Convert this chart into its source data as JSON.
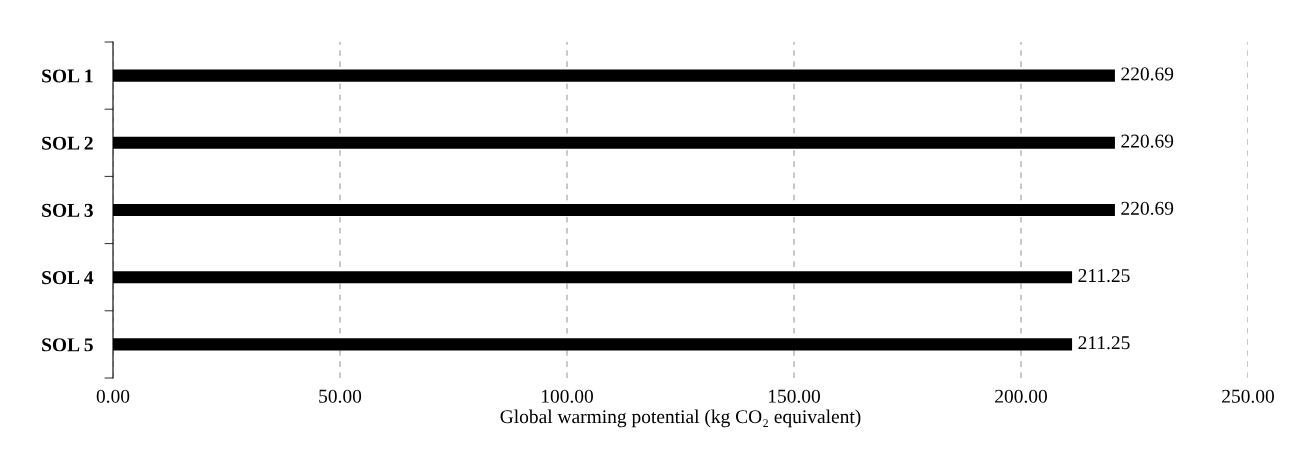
{
  "chart_data": {
    "type": "bar",
    "orientation": "horizontal",
    "categories": [
      "SOL 1",
      "SOL 2",
      "SOL 3",
      "SOL 4",
      "SOL 5"
    ],
    "values": [
      220.69,
      220.69,
      220.69,
      211.25,
      211.25
    ],
    "color": "#000000",
    "xlabel": "Global warming potential (kg CO₂ equivalent)",
    "xlim": [
      0,
      250
    ],
    "xticks": [
      {
        "value": 0,
        "label": "0.00"
      },
      {
        "value": 50,
        "label": "50.00"
      },
      {
        "value": 100,
        "label": "100.00"
      },
      {
        "value": 150,
        "label": "150.00"
      },
      {
        "value": 200,
        "label": "200.00"
      },
      {
        "value": 250,
        "label": "250.00"
      }
    ],
    "grid": "x",
    "data_labels": true
  }
}
